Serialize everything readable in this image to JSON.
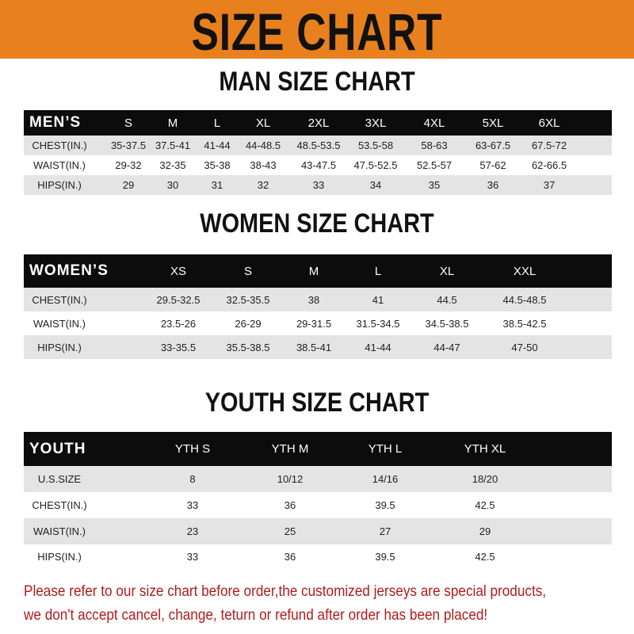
{
  "banner": {
    "title": "SIZE CHART",
    "color": "#e8801e"
  },
  "men": {
    "title": "MAN SIZE CHART",
    "header": [
      "MEN’S",
      "S",
      "M",
      "L",
      "XL",
      "2XL",
      "3XL",
      "4XL",
      "5XL",
      "6XL"
    ],
    "rows": [
      [
        "CHEST(IN.)",
        "35-37.5",
        "37.5-41",
        "41-44",
        "44-48.5",
        "48.5-53.5",
        "53.5-58",
        "58-63",
        "63-67.5",
        "67.5-72"
      ],
      [
        "WAIST(IN.)",
        "29-32",
        "32-35",
        "35-38",
        "38-43",
        "43-47.5",
        "47.5-52.5",
        "52.5-57",
        "57-62",
        "62-66.5"
      ],
      [
        "HIPS(IN.)",
        "29",
        "30",
        "31",
        "32",
        "33",
        "34",
        "35",
        "36",
        "37"
      ]
    ]
  },
  "women": {
    "title": "WOMEN SIZE CHART",
    "header": [
      "WOMEN’S",
      "XS",
      "S",
      "M",
      "L",
      "XL",
      "XXL"
    ],
    "rows": [
      [
        "CHEST(IN.)",
        "29.5-32.5",
        "32.5-35.5",
        "38",
        "41",
        "44.5",
        "44.5-48.5"
      ],
      [
        "WAIST(IN.)",
        "23.5-26",
        "26-29",
        "29-31.5",
        "31.5-34.5",
        "34.5-38.5",
        "38.5-42.5"
      ],
      [
        "HIPS(IN.)",
        "33-35.5",
        "35.5-38.5",
        "38.5-41",
        "41-44",
        "44-47",
        "47-50"
      ]
    ]
  },
  "youth": {
    "title": "YOUTH SIZE CHART",
    "header": [
      "YOUTH",
      "YTH S",
      "YTH M",
      "YTH L",
      "YTH XL"
    ],
    "rows": [
      [
        "U.S.SIZE",
        "8",
        "10/12",
        "14/16",
        "18/20"
      ],
      [
        "CHEST(IN.)",
        "33",
        "36",
        "39.5",
        "42.5"
      ],
      [
        "WAIST(IN.)",
        "23",
        "25",
        "27",
        "29"
      ],
      [
        "HIPS(IN.)",
        "33",
        "36",
        "39.5",
        "42.5"
      ]
    ]
  },
  "notice": {
    "line1": "Please refer to our size chart before order,the customized jerseys are special products,",
    "line2": "we don't accept cancel, change, teturn or refund after order has been placed!",
    "color": "#b01c1c"
  }
}
